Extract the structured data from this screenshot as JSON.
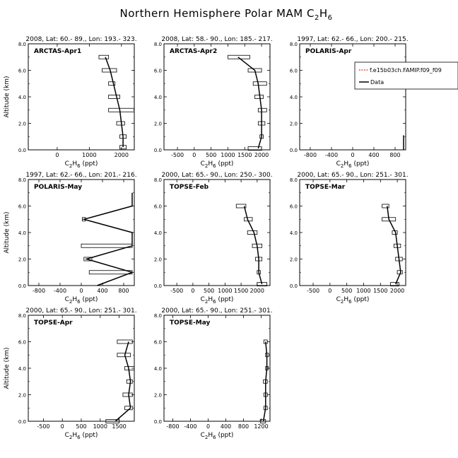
{
  "figure": {
    "title_main": "Northern Hemisphere Polar MAM C",
    "title_sub": "2",
    "title_tail": "H",
    "title_sub2": "6",
    "xlabel_main": "C",
    "xlabel_sub": "2",
    "xlabel_mid": "H",
    "xlabel_sub2": "6",
    "xlabel_tail": " (ppt)",
    "ylabel": "Altitude (km)",
    "legend": {
      "model": "f.e15b03ch.FAMIP.f09_f09",
      "data": "Data",
      "model_color": "#cc0000",
      "data_color": "#000000"
    }
  },
  "chart_data": [
    {
      "type": "line",
      "panel": 0,
      "header": "2008, Lat:  60.- 89., Lon: 193.- 323.",
      "campaign": "ARCTAS-Apr1",
      "xlim": [
        -900,
        2400
      ],
      "ylim": [
        0,
        8
      ],
      "xticks": [
        0,
        1000,
        2000
      ],
      "yticks": [
        0.0,
        2.0,
        4.0,
        6.0,
        8.0
      ],
      "profile": [
        [
          2050,
          0.2
        ],
        [
          2050,
          1.0
        ],
        [
          2000,
          2.0
        ],
        [
          1950,
          3.0
        ],
        [
          1850,
          4.0
        ],
        [
          1750,
          5.0
        ],
        [
          1650,
          6.0
        ],
        [
          1500,
          7.0
        ]
      ],
      "boxes": [
        [
          1950,
          2150,
          0.2
        ],
        [
          1950,
          2150,
          1.0
        ],
        [
          1850,
          2100,
          2.0
        ],
        [
          1600,
          2400,
          3.0
        ],
        [
          1600,
          1950,
          4.0
        ],
        [
          1600,
          1800,
          5.0
        ],
        [
          1400,
          1850,
          6.0
        ],
        [
          1300,
          1600,
          7.0
        ]
      ]
    },
    {
      "type": "line",
      "panel": 1,
      "header": "2008, Lat:  58.- 90., Lon: 185.- 217.",
      "campaign": "ARCTAS-Apr2",
      "xlim": [
        -900,
        2250
      ],
      "ylim": [
        0,
        8
      ],
      "xticks": [
        -500,
        0,
        500,
        1000,
        1500,
        2000
      ],
      "yticks": [
        0.0,
        2.0,
        4.0,
        6.0,
        8.0
      ],
      "profile": [
        [
          1900,
          0.1
        ],
        [
          2000,
          1.0
        ],
        [
          2000,
          2.0
        ],
        [
          2000,
          3.0
        ],
        [
          1950,
          4.0
        ],
        [
          1900,
          5.0
        ],
        [
          1800,
          6.0
        ],
        [
          1300,
          7.0
        ]
      ],
      "boxes": [
        [
          1600,
          2000,
          0.1
        ],
        [
          1950,
          2050,
          1.0
        ],
        [
          1900,
          2100,
          2.0
        ],
        [
          1900,
          2150,
          3.0
        ],
        [
          1800,
          2050,
          4.0
        ],
        [
          1750,
          2150,
          5.0
        ],
        [
          1600,
          2000,
          6.0
        ],
        [
          1000,
          1650,
          7.0
        ]
      ]
    },
    {
      "type": "line",
      "panel": 2,
      "header": "1997, Lat:  62.- 66., Lon: 200.- 215.",
      "campaign": "POLARIS-Apr",
      "xlim": [
        -1000,
        1000
      ],
      "ylim": [
        0,
        8
      ],
      "xticks": [
        -800,
        -400,
        0,
        400,
        800
      ],
      "yticks": [
        0.0,
        2.0,
        4.0,
        6.0,
        8.0
      ],
      "profile": [
        [
          960,
          0.0
        ],
        [
          960,
          1.1
        ]
      ],
      "boxes": []
    },
    {
      "type": "line",
      "panel": 3,
      "header": "1997, Lat:  62.- 66., Lon: 201.- 216.",
      "campaign": "POLARIS-May",
      "xlim": [
        -1000,
        1000
      ],
      "ylim": [
        0,
        8
      ],
      "xticks": [
        -800,
        -400,
        0,
        400,
        800
      ],
      "yticks": [
        0.0,
        2.0,
        4.0,
        6.0,
        8.0
      ],
      "profile": [
        [
          300,
          0.0
        ],
        [
          960,
          1.0
        ],
        [
          100,
          2.0
        ],
        [
          960,
          3.0
        ],
        [
          960,
          4.0
        ],
        [
          50,
          5.0
        ],
        [
          960,
          6.0
        ],
        [
          960,
          7.0
        ]
      ],
      "boxes": [
        [
          150,
          960,
          1.0
        ],
        [
          50,
          200,
          2.0
        ],
        [
          0,
          960,
          3.0
        ],
        [
          20,
          80,
          5.0
        ]
      ]
    },
    {
      "type": "line",
      "panel": 4,
      "header": "2000, Lat:  65.- 90., Lon: 250.- 300.",
      "campaign": "TOPSE-Feb",
      "xlim": [
        -900,
        2400
      ],
      "ylim": [
        0,
        8
      ],
      "xticks": [
        -500,
        0,
        500,
        1000,
        1500,
        2000
      ],
      "yticks": [
        0.0,
        2.0,
        4.0,
        6.0,
        8.0
      ],
      "profile": [
        [
          2150,
          0.1
        ],
        [
          2050,
          1.0
        ],
        [
          2050,
          2.0
        ],
        [
          2000,
          3.0
        ],
        [
          1900,
          4.0
        ],
        [
          1700,
          5.0
        ],
        [
          1600,
          6.0
        ]
      ],
      "boxes": [
        [
          2000,
          2300,
          0.1
        ],
        [
          2000,
          2100,
          1.0
        ],
        [
          1950,
          2150,
          2.0
        ],
        [
          1850,
          2150,
          3.0
        ],
        [
          1700,
          2000,
          4.0
        ],
        [
          1600,
          1850,
          5.0
        ],
        [
          1350,
          1650,
          6.0
        ]
      ]
    },
    {
      "type": "line",
      "panel": 5,
      "header": "2000, Lat:  65.- 90., Lon: 251.- 301.",
      "campaign": "TOPSE-Mar",
      "xlim": [
        -900,
        2250
      ],
      "ylim": [
        0,
        8
      ],
      "xticks": [
        -500,
        0,
        500,
        1000,
        1500,
        2000
      ],
      "yticks": [
        0.0,
        2.0,
        4.0,
        6.0,
        8.0
      ],
      "profile": [
        [
          1950,
          0.1
        ],
        [
          2100,
          1.0
        ],
        [
          2050,
          2.0
        ],
        [
          2000,
          3.0
        ],
        [
          1950,
          4.0
        ],
        [
          1750,
          5.0
        ],
        [
          1700,
          6.0
        ]
      ],
      "boxes": [
        [
          1800,
          2050,
          0.1
        ],
        [
          2000,
          2150,
          1.0
        ],
        [
          1950,
          2150,
          2.0
        ],
        [
          1900,
          2100,
          3.0
        ],
        [
          1850,
          2000,
          4.0
        ],
        [
          1550,
          1950,
          5.0
        ],
        [
          1550,
          1750,
          6.0
        ]
      ]
    },
    {
      "type": "line",
      "panel": 6,
      "header": "2000, Lat:  65.- 90., Lon: 251.- 301.",
      "campaign": "TOPSE-Apr",
      "xlim": [
        -900,
        1900
      ],
      "ylim": [
        0,
        8
      ],
      "xticks": [
        -500,
        0,
        500,
        1000,
        1500
      ],
      "yticks": [
        0.0,
        2.0,
        4.0,
        6.0,
        8.0
      ],
      "profile": [
        [
          1400,
          0.0
        ],
        [
          1800,
          1.0
        ],
        [
          1750,
          2.0
        ],
        [
          1800,
          3.0
        ],
        [
          1750,
          4.0
        ],
        [
          1650,
          5.0
        ],
        [
          1750,
          6.0
        ]
      ],
      "boxes": [
        [
          1150,
          1500,
          0.0
        ],
        [
          1650,
          1850,
          1.0
        ],
        [
          1600,
          1850,
          2.0
        ],
        [
          1700,
          1850,
          3.0
        ],
        [
          1650,
          1900,
          4.0
        ],
        [
          1450,
          1800,
          5.0
        ],
        [
          1450,
          1850,
          6.0
        ]
      ]
    },
    {
      "type": "line",
      "panel": 7,
      "header": "2000, Lat:  65.- 90., Lon: 251.- 301.",
      "campaign": "TOPSE-May",
      "xlim": [
        -1000,
        1400
      ],
      "ylim": [
        0,
        8
      ],
      "xticks": [
        -800,
        -400,
        0,
        400,
        800,
        1200
      ],
      "yticks": [
        0.0,
        2.0,
        4.0,
        6.0,
        8.0
      ],
      "profile": [
        [
          1250,
          0.0
        ],
        [
          1300,
          1.0
        ],
        [
          1300,
          2.0
        ],
        [
          1300,
          3.0
        ],
        [
          1330,
          4.0
        ],
        [
          1330,
          5.0
        ],
        [
          1300,
          6.0
        ]
      ],
      "boxes": [
        [
          1180,
          1300,
          0.0
        ],
        [
          1260,
          1340,
          1.0
        ],
        [
          1260,
          1340,
          2.0
        ],
        [
          1250,
          1340,
          3.0
        ],
        [
          1300,
          1360,
          4.0
        ],
        [
          1300,
          1370,
          5.0
        ],
        [
          1260,
          1340,
          6.0
        ]
      ]
    }
  ]
}
